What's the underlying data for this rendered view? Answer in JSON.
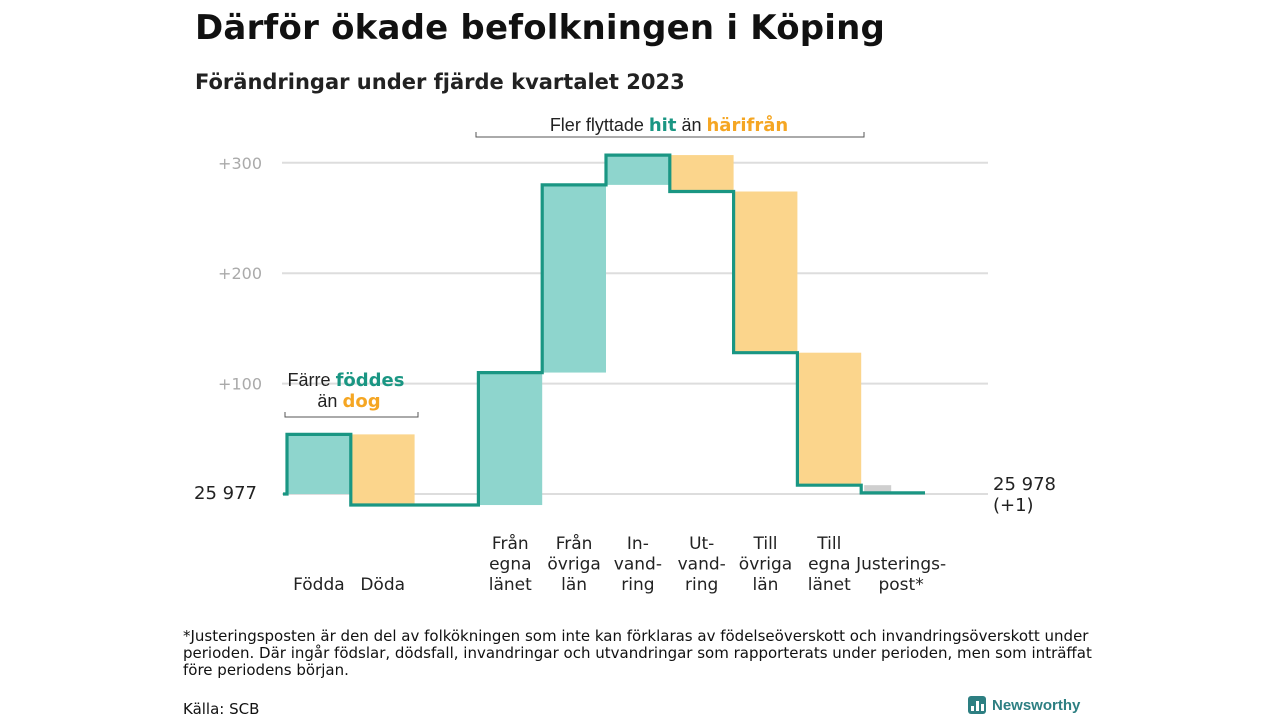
{
  "header": {
    "title": "Därför ökade befolkningen i Köping",
    "subtitle": "Förändringar under fjärde kvartalet 2023"
  },
  "colors": {
    "increase": "#8ed5cd",
    "decrease": "#fbd58c",
    "adjustment": "#cfcfcf",
    "line": "#1a9683",
    "teal_text": "#1a9683",
    "orange_text": "#f5a623",
    "grid": "#dddddd",
    "tick": "#aaaaaa"
  },
  "annotations": {
    "births_deaths": {
      "line1_prefix": "Färre",
      "line1_highlight": "föddes",
      "line2_prefix": "än",
      "line2_highlight": "dog"
    },
    "migration": {
      "prefix": "Fler flyttade",
      "highlight1": "hit",
      "middle": "än",
      "highlight2": "härifrån"
    }
  },
  "chart_data": {
    "type": "waterfall",
    "title": "Därför ökade befolkningen i Köping",
    "subtitle": "Förändringar under fjärde kvartalet 2023",
    "start_value": 25977,
    "start_label": "25  977",
    "end_value": 25978,
    "end_label_line1": "25 978",
    "end_label_line2": "(+1)",
    "ylim": [
      -10,
      305
    ],
    "yticks": [
      {
        "value": 100,
        "label": "+100"
      },
      {
        "value": 200,
        "label": "+200"
      },
      {
        "value": 300,
        "label": "+300"
      }
    ],
    "grid": true,
    "categories": [
      {
        "label_lines": [
          "Födda"
        ],
        "delta": 54,
        "kind": "increase"
      },
      {
        "label_lines": [
          "Döda"
        ],
        "delta": -64,
        "kind": "decrease"
      },
      {
        "label_lines": [],
        "delta": 0,
        "kind": "gap"
      },
      {
        "label_lines": [
          "Från",
          "egna",
          "länet"
        ],
        "delta": 120,
        "kind": "increase"
      },
      {
        "label_lines": [
          "Från",
          "övriga",
          "län"
        ],
        "delta": 170,
        "kind": "increase"
      },
      {
        "label_lines": [
          "In-",
          "vand-",
          "ring"
        ],
        "delta": 27,
        "kind": "increase"
      },
      {
        "label_lines": [
          "Ut-",
          "vand-",
          "ring"
        ],
        "delta": -33,
        "kind": "decrease"
      },
      {
        "label_lines": [
          "Till",
          "övriga",
          "län"
        ],
        "delta": -146,
        "kind": "decrease"
      },
      {
        "label_lines": [
          "Till",
          "egna",
          "länet"
        ],
        "delta": -120,
        "kind": "decrease"
      },
      {
        "label_lines": [
          "Justerings-",
          "post*"
        ],
        "delta": -7,
        "kind": "adjustment"
      }
    ]
  },
  "footer": {
    "footnote": "*Justeringsposten är den del av folkökningen som inte kan förklaras av födelseöverskott och invandringsöverskott under perioden. Där ingår födslar, dödsfall, invandringar och utvandringar som rapporterats under perioden, men som inträffat före periodens början.",
    "source": "Källa: SCB",
    "brand": "Newsworthy"
  }
}
